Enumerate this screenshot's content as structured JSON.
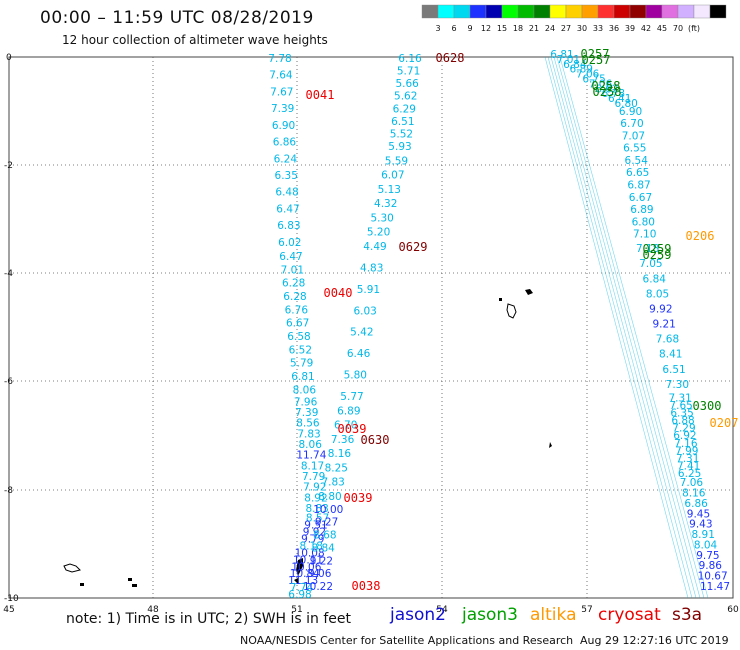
{
  "header": {
    "title": "00:00 – 11:59 UTC 08/28/2019",
    "subtitle": "12 hour collection of altimeter wave heights"
  },
  "color_scale": {
    "colors": [
      "#7a7a7a",
      "#00ffff",
      "#00d8f0",
      "#1e32ff",
      "#0000b0",
      "#00ff00",
      "#00bb00",
      "#008000",
      "#ffff00",
      "#ffd000",
      "#ffa000",
      "#ff3030",
      "#cc0000",
      "#900000",
      "#a000a0",
      "#e070e0",
      "#d0b0ff",
      "#f4e8ff",
      "#000000"
    ],
    "labels": [
      "3",
      "6",
      "9",
      "12",
      "15",
      "18",
      "21",
      "24",
      "27",
      "30",
      "33",
      "36",
      "39",
      "42",
      "45",
      "70",
      "(ft)"
    ]
  },
  "axes": {
    "x_ticks": [
      "45",
      "48",
      "51",
      "54",
      "57",
      "60"
    ],
    "y_ticks": [
      "0",
      "-2",
      "-4",
      "-6",
      "-8",
      "-10"
    ]
  },
  "tracks": {
    "track_a": {
      "color": "#00b8e8",
      "values": [
        "7.78",
        "7.64",
        "7.67",
        "7.39",
        "6.90",
        "6.86",
        "6.24",
        "6.35",
        "6.48",
        "6.47",
        "6.83",
        "6.02",
        "6.47",
        "7.01",
        "6.28",
        "6.28",
        "6.76",
        "6.67",
        "6.58",
        "6.52",
        "5.79",
        "6.81",
        "8.06",
        "7.96",
        "7.39",
        "8.56",
        "7.83",
        "8.06",
        "11.74",
        "8.17",
        "7.79",
        "7.92",
        "8.92",
        "8.83",
        "8.57",
        "9.51",
        "9.92",
        "9.79",
        "8.18",
        "10.08",
        "10.11",
        "10.06",
        "10.84",
        "11.13",
        "7.74",
        "6.98"
      ]
    },
    "track_b": {
      "color": "#00b8e8",
      "values": [
        "6.16",
        "5.71",
        "5.66",
        "5.62",
        "6.29",
        "6.51",
        "5.52",
        "5.93",
        "5.59",
        "6.07",
        "5.13",
        "4.32",
        "5.30",
        "5.20",
        "4.49",
        "4.83",
        "5.91",
        "6.03",
        "5.42",
        "6.46",
        "5.80",
        "5.77",
        "6.89",
        "6.70",
        "7.36",
        "8.16",
        "8.25",
        "7.83",
        "8.80",
        "10.00",
        "9.27",
        "8.68",
        "8.84",
        "9.22",
        "9.06",
        "10.22"
      ]
    },
    "track_c": {
      "color": "#00b8e8",
      "values": [
        "6.81",
        "7.01",
        "6.84",
        "6.89",
        "7.06",
        "6.75",
        "7.06",
        "6.62",
        "6.78",
        "6.41",
        "6.80",
        "6.90",
        "6.70",
        "7.07",
        "6.55",
        "6.54",
        "6.65",
        "6.87",
        "6.67",
        "6.89",
        "6.80",
        "7.10",
        "7.18",
        "7.05",
        "6.84",
        "8.05",
        "9.92",
        "9.21",
        "7.68",
        "8.41",
        "6.51",
        "7.30",
        "7.31",
        "7.65",
        "6.35",
        "6.88",
        "7.29",
        "6.92",
        "7.16",
        "7.99",
        "7.31",
        "7.41",
        "6.25",
        "7.06",
        "8.16",
        "6.86",
        "9.45",
        "9.43",
        "8.91",
        "8.04",
        "9.75",
        "9.86",
        "10.67",
        "11.47"
      ]
    }
  },
  "timestamps": [
    {
      "text": "0628",
      "color": "#800000"
    },
    {
      "text": "0257",
      "color": "#008000"
    },
    {
      "text": "0257",
      "color": "#008000"
    },
    {
      "text": "0041",
      "color": "#ee0000"
    },
    {
      "text": "0258",
      "color": "#008000"
    },
    {
      "text": "0258",
      "color": "#008000"
    },
    {
      "text": "0206",
      "color": "#ff9900"
    },
    {
      "text": "0629",
      "color": "#800000"
    },
    {
      "text": "0259",
      "color": "#008000"
    },
    {
      "text": "0259",
      "color": "#008000"
    },
    {
      "text": "0040",
      "color": "#ee0000"
    },
    {
      "text": "0300",
      "color": "#008000"
    },
    {
      "text": "0207",
      "color": "#ff9900"
    },
    {
      "text": "0039",
      "color": "#ee0000"
    },
    {
      "text": "0630",
      "color": "#800000"
    },
    {
      "text": "0039",
      "color": "#ee0000"
    },
    {
      "text": "0038",
      "color": "#ee0000"
    }
  ],
  "footer": {
    "note": "note:  1) Time is in UTC;  2) SWH is in feet",
    "missions": [
      {
        "name": "jason2",
        "color": "#1010d0"
      },
      {
        "name": "jason3",
        "color": "#00a000"
      },
      {
        "name": "altika",
        "color": "#ff9900"
      },
      {
        "name": "cryosat",
        "color": "#ee0000"
      },
      {
        "name": "s3a",
        "color": "#800000"
      }
    ],
    "credit": "NOAA/NESDIS Center for Satellite Applications and Research",
    "generated": "Aug 29 12:27:16 UTC 2019"
  }
}
